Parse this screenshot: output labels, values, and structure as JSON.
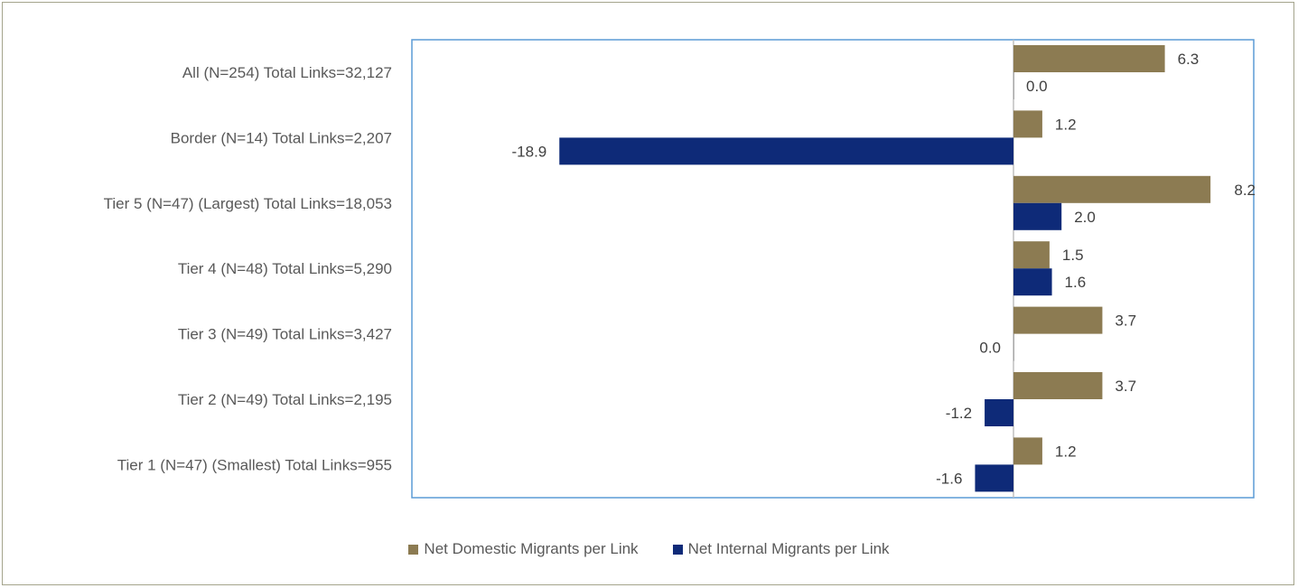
{
  "chart_data": {
    "type": "bar",
    "orientation": "horizontal",
    "categories": [
      "All (N=254) Total Links=32,127",
      "Border (N=14) Total Links=2,207",
      "Tier 5 (N=47) (Largest) Total Links=18,053",
      "Tier 4 (N=48) Total Links=5,290",
      "Tier 3 (N=49) Total Links=3,427",
      "Tier 2 (N=49) Total Links=2,195",
      "Tier 1 (N=47) (Smallest) Total Links=955"
    ],
    "series": [
      {
        "name": "Net Domestic Migrants per Link",
        "color": "#8c7b52",
        "values": [
          6.3,
          1.2,
          8.2,
          1.5,
          3.7,
          3.7,
          1.2
        ],
        "labels": [
          "6.3",
          "1.2",
          "8.2",
          "1.5",
          "3.7",
          "3.7",
          "1.2"
        ]
      },
      {
        "name": "Net Internal Migrants per Link",
        "color": "#0e2a78",
        "values": [
          0.0,
          -18.9,
          2.0,
          1.6,
          0.0,
          -1.2,
          -1.6
        ],
        "labels": [
          "0.0",
          "-18.9",
          "2.0",
          "1.6",
          "0.0",
          "-1.2",
          "-1.6"
        ]
      }
    ],
    "xlim": [
      -25,
      10
    ],
    "grid": false,
    "legend_position": "bottom"
  }
}
